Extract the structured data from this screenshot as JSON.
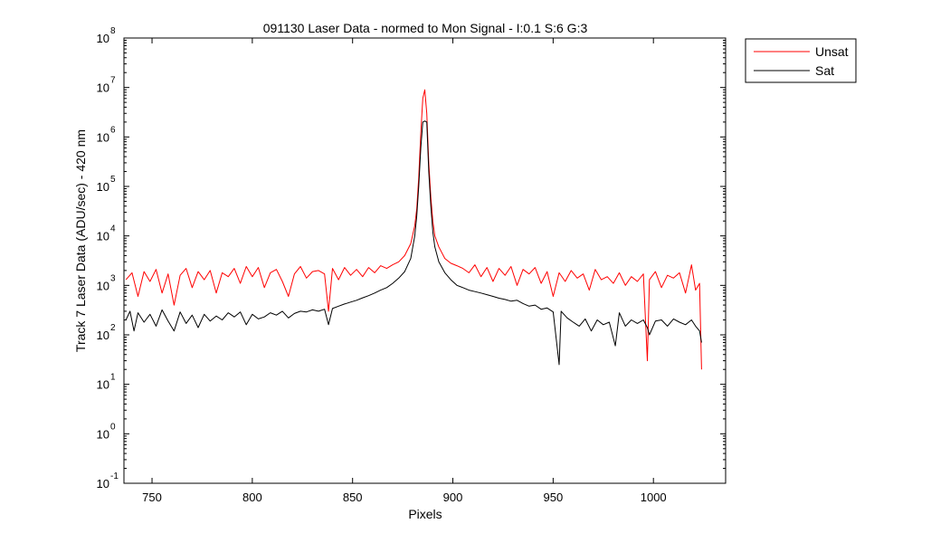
{
  "chart_data": {
    "type": "line",
    "title": "091130 Laser Data - normed to Mon Signal -   I:0.1  S:6  G:3",
    "xlabel": "Pixels",
    "ylabel": "Track 7 Laser Data (ADU/sec) - 420 nm",
    "xlim": [
      736,
      1036
    ],
    "ylim": [
      0.1,
      100000000
    ],
    "yscale": "log",
    "x_ticks": [
      "750",
      "800",
      "850",
      "900",
      "950",
      "1000"
    ],
    "y_ticks": [
      {
        "base": "10",
        "exp": "-1"
      },
      {
        "base": "10",
        "exp": "0"
      },
      {
        "base": "10",
        "exp": "1"
      },
      {
        "base": "10",
        "exp": "2"
      },
      {
        "base": "10",
        "exp": "3"
      },
      {
        "base": "10",
        "exp": "4"
      },
      {
        "base": "10",
        "exp": "5"
      },
      {
        "base": "10",
        "exp": "6"
      },
      {
        "base": "10",
        "exp": "7"
      },
      {
        "base": "10",
        "exp": "8"
      }
    ],
    "grid": false,
    "legend_position": "outside-top-right",
    "series": [
      {
        "name": "Unsat",
        "color": "#ff0000",
        "points": [
          [
            737,
            1300
          ],
          [
            740,
            1800
          ],
          [
            743,
            600
          ],
          [
            746,
            1900
          ],
          [
            749,
            1200
          ],
          [
            752,
            2100
          ],
          [
            755,
            700
          ],
          [
            758,
            1700
          ],
          [
            761,
            400
          ],
          [
            764,
            1600
          ],
          [
            767,
            2200
          ],
          [
            770,
            900
          ],
          [
            773,
            1900
          ],
          [
            776,
            1300
          ],
          [
            779,
            2000
          ],
          [
            782,
            700
          ],
          [
            785,
            1800
          ],
          [
            788,
            1500
          ],
          [
            791,
            2200
          ],
          [
            794,
            1100
          ],
          [
            797,
            2400
          ],
          [
            800,
            1500
          ],
          [
            803,
            2300
          ],
          [
            806,
            900
          ],
          [
            809,
            1800
          ],
          [
            812,
            2100
          ],
          [
            815,
            1200
          ],
          [
            818,
            600
          ],
          [
            821,
            1700
          ],
          [
            824,
            2400
          ],
          [
            827,
            1400
          ],
          [
            830,
            1900
          ],
          [
            833,
            2000
          ],
          [
            836,
            1700
          ],
          [
            838,
            300
          ],
          [
            840,
            2200
          ],
          [
            843,
            1300
          ],
          [
            846,
            2300
          ],
          [
            849,
            1600
          ],
          [
            852,
            2100
          ],
          [
            855,
            1500
          ],
          [
            858,
            2300
          ],
          [
            861,
            1800
          ],
          [
            864,
            2500
          ],
          [
            867,
            2200
          ],
          [
            870,
            2600
          ],
          [
            873,
            3000
          ],
          [
            876,
            4000
          ],
          [
            879,
            7000
          ],
          [
            881,
            16000
          ],
          [
            882,
            35000
          ],
          [
            883,
            150000
          ],
          [
            884,
            1200000
          ],
          [
            885,
            6000000
          ],
          [
            886,
            9000000
          ],
          [
            887,
            3000000
          ],
          [
            888,
            300000
          ],
          [
            889,
            60000
          ],
          [
            890,
            20000
          ],
          [
            891,
            10000
          ],
          [
            893,
            6000
          ],
          [
            896,
            3500
          ],
          [
            899,
            2800
          ],
          [
            902,
            2500
          ],
          [
            905,
            2200
          ],
          [
            908,
            1800
          ],
          [
            911,
            2600
          ],
          [
            914,
            1500
          ],
          [
            917,
            2300
          ],
          [
            920,
            1200
          ],
          [
            923,
            2200
          ],
          [
            926,
            1600
          ],
          [
            929,
            2400
          ],
          [
            932,
            1000
          ],
          [
            935,
            2100
          ],
          [
            938,
            1700
          ],
          [
            941,
            2300
          ],
          [
            944,
            1100
          ],
          [
            947,
            1900
          ],
          [
            950,
            600
          ],
          [
            953,
            1800
          ],
          [
            956,
            1200
          ],
          [
            959,
            2000
          ],
          [
            962,
            1400
          ],
          [
            965,
            1700
          ],
          [
            968,
            800
          ],
          [
            971,
            2100
          ],
          [
            974,
            1300
          ],
          [
            977,
            1500
          ],
          [
            980,
            1100
          ],
          [
            983,
            1800
          ],
          [
            986,
            1000
          ],
          [
            989,
            1500
          ],
          [
            992,
            1200
          ],
          [
            995,
            1700
          ],
          [
            997,
            30
          ],
          [
            998,
            1300
          ],
          [
            1001,
            1900
          ],
          [
            1004,
            900
          ],
          [
            1007,
            1600
          ],
          [
            1010,
            1400
          ],
          [
            1013,
            1800
          ],
          [
            1016,
            700
          ],
          [
            1019,
            2600
          ],
          [
            1021,
            800
          ],
          [
            1023,
            1100
          ],
          [
            1024,
            20
          ]
        ]
      },
      {
        "name": "Sat",
        "color": "#000000",
        "points": [
          [
            737,
            200
          ],
          [
            739,
            300
          ],
          [
            741,
            120
          ],
          [
            743,
            280
          ],
          [
            746,
            180
          ],
          [
            749,
            260
          ],
          [
            752,
            150
          ],
          [
            755,
            320
          ],
          [
            758,
            190
          ],
          [
            761,
            120
          ],
          [
            764,
            290
          ],
          [
            767,
            170
          ],
          [
            770,
            250
          ],
          [
            773,
            140
          ],
          [
            776,
            260
          ],
          [
            779,
            190
          ],
          [
            782,
            240
          ],
          [
            785,
            200
          ],
          [
            788,
            280
          ],
          [
            791,
            230
          ],
          [
            794,
            290
          ],
          [
            797,
            160
          ],
          [
            800,
            260
          ],
          [
            803,
            210
          ],
          [
            806,
            230
          ],
          [
            809,
            280
          ],
          [
            812,
            250
          ],
          [
            815,
            300
          ],
          [
            818,
            220
          ],
          [
            821,
            270
          ],
          [
            824,
            300
          ],
          [
            827,
            290
          ],
          [
            830,
            320
          ],
          [
            833,
            300
          ],
          [
            836,
            330
          ],
          [
            838,
            160
          ],
          [
            840,
            340
          ],
          [
            843,
            380
          ],
          [
            846,
            420
          ],
          [
            849,
            460
          ],
          [
            852,
            500
          ],
          [
            855,
            560
          ],
          [
            858,
            620
          ],
          [
            861,
            700
          ],
          [
            864,
            800
          ],
          [
            867,
            900
          ],
          [
            870,
            1100
          ],
          [
            873,
            1400
          ],
          [
            876,
            1900
          ],
          [
            879,
            3500
          ],
          [
            881,
            10000
          ],
          [
            882,
            25000
          ],
          [
            883,
            100000
          ],
          [
            884,
            600000
          ],
          [
            885,
            2000000
          ],
          [
            886,
            2100000
          ],
          [
            887,
            2000000
          ],
          [
            888,
            200000
          ],
          [
            889,
            40000
          ],
          [
            890,
            12000
          ],
          [
            891,
            6000
          ],
          [
            893,
            3000
          ],
          [
            896,
            1800
          ],
          [
            899,
            1300
          ],
          [
            902,
            1000
          ],
          [
            905,
            900
          ],
          [
            908,
            800
          ],
          [
            911,
            750
          ],
          [
            914,
            700
          ],
          [
            917,
            650
          ],
          [
            920,
            600
          ],
          [
            923,
            550
          ],
          [
            926,
            520
          ],
          [
            929,
            480
          ],
          [
            932,
            500
          ],
          [
            935,
            430
          ],
          [
            938,
            380
          ],
          [
            941,
            400
          ],
          [
            944,
            330
          ],
          [
            947,
            350
          ],
          [
            950,
            290
          ],
          [
            953,
            25
          ],
          [
            954,
            300
          ],
          [
            957,
            220
          ],
          [
            960,
            180
          ],
          [
            963,
            150
          ],
          [
            966,
            210
          ],
          [
            969,
            120
          ],
          [
            972,
            200
          ],
          [
            975,
            160
          ],
          [
            978,
            180
          ],
          [
            981,
            60
          ],
          [
            983,
            280
          ],
          [
            986,
            150
          ],
          [
            989,
            200
          ],
          [
            992,
            170
          ],
          [
            995,
            200
          ],
          [
            997,
            140
          ],
          [
            998,
            100
          ],
          [
            1001,
            190
          ],
          [
            1004,
            200
          ],
          [
            1007,
            150
          ],
          [
            1010,
            210
          ],
          [
            1013,
            180
          ],
          [
            1016,
            160
          ],
          [
            1019,
            200
          ],
          [
            1021,
            150
          ],
          [
            1023,
            120
          ],
          [
            1024,
            70
          ]
        ]
      }
    ]
  }
}
